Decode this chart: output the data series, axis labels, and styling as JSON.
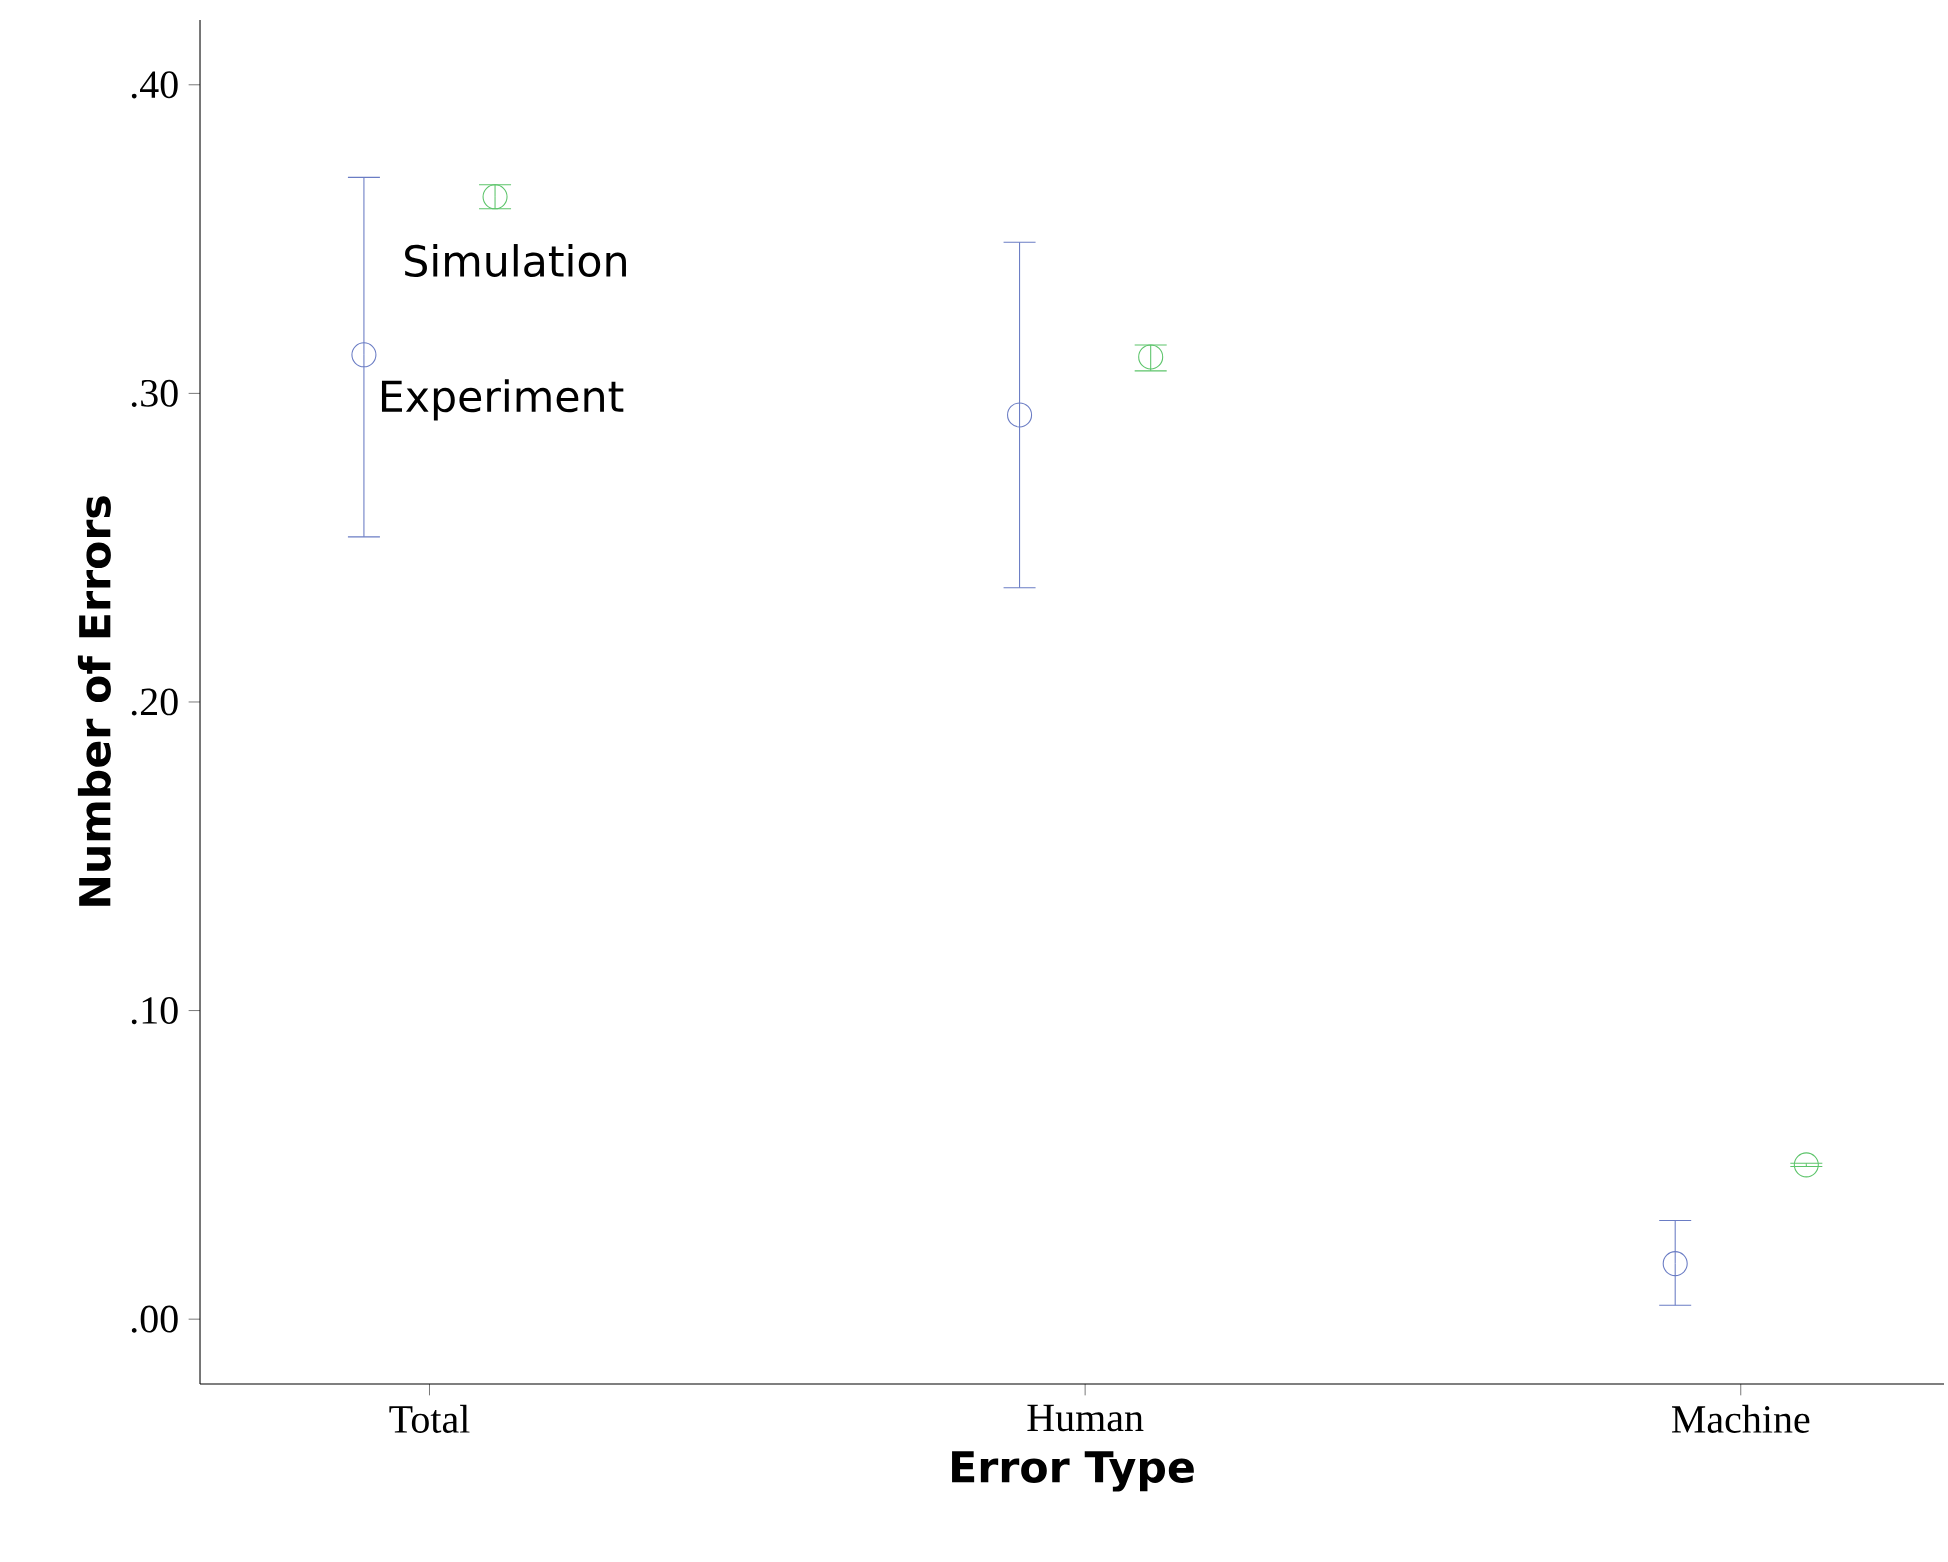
{
  "chart_data": {
    "type": "scatter",
    "xlabel": "Error Type",
    "ylabel": "Number of Errors",
    "categories": [
      "Total",
      "Human",
      "Machine"
    ],
    "series": [
      {
        "name": "Experiment",
        "color": "#6a7cc4",
        "values": [
          0.3125,
          0.293,
          0.018
        ],
        "errors": [
          [
            0.2535,
            0.37
          ],
          [
            0.237,
            0.349
          ],
          [
            0.0045,
            0.032
          ]
        ]
      },
      {
        "name": "Simulation",
        "color": "#5cc46a",
        "values": [
          0.3637,
          0.3118,
          0.05
        ],
        "errors": [
          [
            0.3598,
            0.3676
          ],
          [
            0.3073,
            0.3157
          ],
          [
            0.0495,
            0.0505
          ]
        ]
      }
    ],
    "ylim": [
      -0.021,
      0.421
    ],
    "yticks": [
      {
        "value": 0,
        "label": ".00"
      },
      {
        "value": 0.1,
        "label": ".10"
      },
      {
        "value": 0.2,
        "label": ".20"
      },
      {
        "value": 0.3,
        "label": ".30"
      },
      {
        "value": 0.4,
        "label": ".40"
      }
    ],
    "marker": "circle",
    "grid": false,
    "legend": false
  }
}
